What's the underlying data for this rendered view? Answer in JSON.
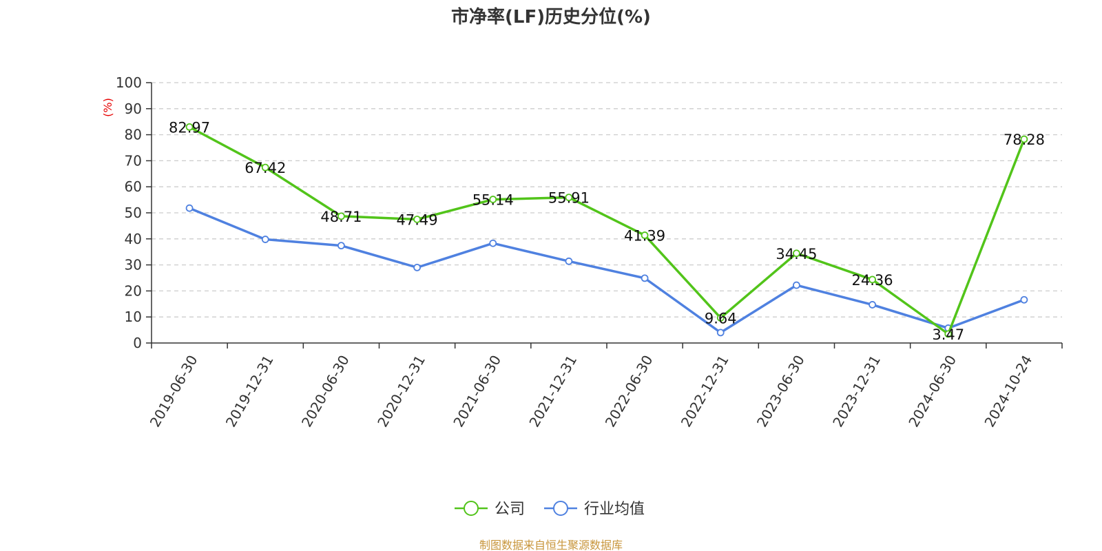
{
  "chart_data": {
    "type": "line",
    "title": "市净率(LF)历史分位(%)",
    "ylabel": "(%)",
    "xlabel": "",
    "ylim": [
      0,
      100
    ],
    "yticks": [
      0,
      10,
      20,
      30,
      40,
      50,
      60,
      70,
      80,
      90,
      100
    ],
    "grid": true,
    "legend_position": "bottom-center",
    "categories": [
      "2019-06-30",
      "2019-12-31",
      "2020-06-30",
      "2020-12-31",
      "2021-06-30",
      "2021-12-31",
      "2022-06-30",
      "2022-12-31",
      "2023-06-30",
      "2023-12-31",
      "2024-06-30",
      "2024-10-24"
    ],
    "series": [
      {
        "name": "公司",
        "color": "#52c41a",
        "values": [
          82.97,
          67.42,
          48.71,
          47.49,
          55.14,
          55.91,
          41.39,
          9.64,
          34.45,
          24.36,
          3.47,
          78.28
        ],
        "data_labels": [
          "82.97",
          "67.42",
          "48.71",
          "47.49",
          "55.14",
          "55.91",
          "41.39",
          "9.64",
          "34.45",
          "24.36",
          "3.47",
          "78.28"
        ]
      },
      {
        "name": "行业均值",
        "color": "#4f81e0",
        "values": [
          51.8,
          39.8,
          37.4,
          29.0,
          38.3,
          31.4,
          24.9,
          4.0,
          22.2,
          14.7,
          5.7,
          16.6
        ]
      }
    ],
    "unit_color": "#e60000"
  },
  "source": {
    "text": "制图数据来自恒生聚源数据库",
    "color": "#c8963c"
  }
}
